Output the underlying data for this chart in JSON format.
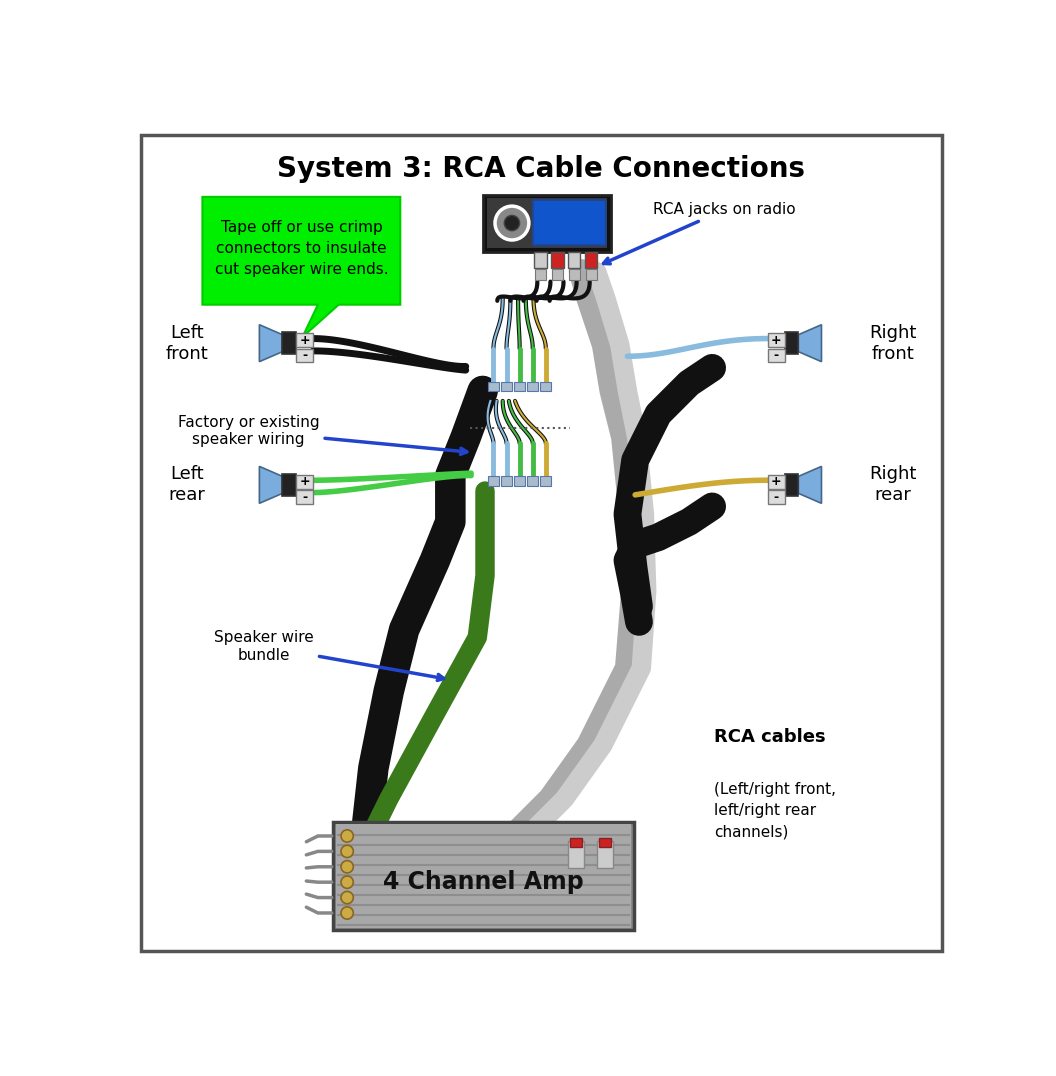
{
  "title": "System 3: RCA Cable Connections",
  "title_fontsize": 20,
  "bg_color": "#ffffff",
  "border_color": "#555555",
  "green_callout_text": "Tape off or use crimp\nconnectors to insulate\ncut speaker wire ends.",
  "rca_label": "RCA jacks on radio",
  "factory_label": "Factory or existing\nspeaker wiring",
  "speaker_bundle_label": "Speaker wire\nbundle",
  "rca_cables_bold": "RCA cables",
  "rca_cables_normal": "(Left/right front,\nleft/right rear\nchannels)",
  "amp_label": "4 Channel Amp",
  "left_front_label": "Left\nfront",
  "right_front_label": "Right\nfront",
  "left_rear_label": "Left\nrear",
  "right_rear_label": "Right\nrear",
  "wire_blue": "#88bbdd",
  "wire_green": "#44bb44",
  "wire_green_dk": "#3a7a1a",
  "wire_orange": "#ccaa33",
  "wire_black": "#111111",
  "wire_gray": "#aaaaaa",
  "wire_gray2": "#cccccc",
  "speaker_cone": "#7aaddd",
  "speaker_body": "#222222",
  "terminal_bg": "#dddddd",
  "radio_bg": "#111111",
  "radio_inner": "#3a3a3a",
  "radio_display": "#1155cc",
  "amp_body": "#a8a8a8",
  "amp_rib": "#888888",
  "gold": "#ccaa44",
  "green_box": "#00ee00",
  "blue_arr": "#2244cc",
  "red_conn": "#cc2222"
}
